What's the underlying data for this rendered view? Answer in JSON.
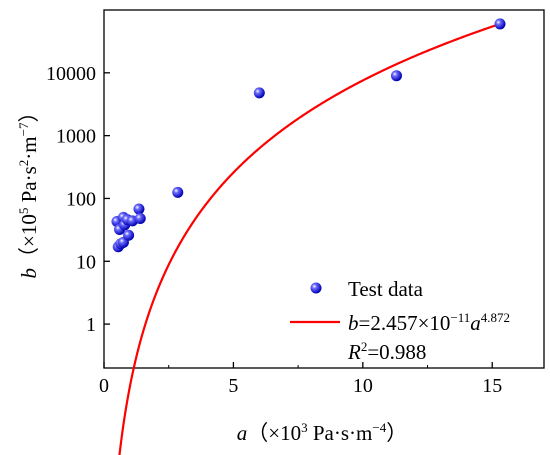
{
  "chart_data": {
    "type": "scatter",
    "x_axis": {
      "label_var": "a",
      "label_unit": "（×10",
      "label_exp": "3",
      "label_rest": " Pa·s·m",
      "label_rest_exp": "−4",
      "label_close": "）",
      "range": [
        0,
        17
      ],
      "ticks": [
        0,
        5,
        10,
        15
      ],
      "tick_labels": [
        "0",
        "5",
        "10",
        "15"
      ],
      "scale": "linear"
    },
    "y_axis": {
      "label_var": "b",
      "label_unit": "（×10",
      "label_exp": "5",
      "label_rest": " Pa·s",
      "label_rest_exp": "2",
      "label_rest2": "·m",
      "label_rest2_exp": "−7",
      "label_close": "）",
      "range": [
        0.2,
        100000
      ],
      "ticks": [
        1,
        10,
        100,
        1000,
        10000
      ],
      "tick_labels": [
        "1",
        "10",
        "100",
        "1000",
        "10000"
      ],
      "scale": "log"
    },
    "series": [
      {
        "name": "Test data",
        "kind": "points",
        "color": "#1a1aff",
        "points": [
          [
            0.5,
            43
          ],
          [
            0.55,
            17
          ],
          [
            0.6,
            32
          ],
          [
            0.65,
            19
          ],
          [
            0.75,
            20
          ],
          [
            0.75,
            50
          ],
          [
            0.8,
            38
          ],
          [
            0.9,
            46
          ],
          [
            0.95,
            26
          ],
          [
            1.1,
            44
          ],
          [
            1.35,
            68
          ],
          [
            1.4,
            48
          ],
          [
            2.85,
            125
          ],
          [
            6.0,
            4800
          ],
          [
            11.3,
            9000
          ],
          [
            15.3,
            60000
          ]
        ]
      },
      {
        "name_var": "b",
        "name_eq": "=2.457×10",
        "name_exp": "−11",
        "name_var2": "a",
        "name_exp2": "4.872",
        "kind": "fit",
        "color": "#ff0000",
        "coefficient": 2.457e-11,
        "exponent": 4.872,
        "x_range": [
          0.55,
          15.3
        ]
      }
    ],
    "annotation": {
      "var": "R",
      "exp": "2",
      "value": "=0.988"
    },
    "legend_position": "bottom-right",
    "grid": false
  }
}
